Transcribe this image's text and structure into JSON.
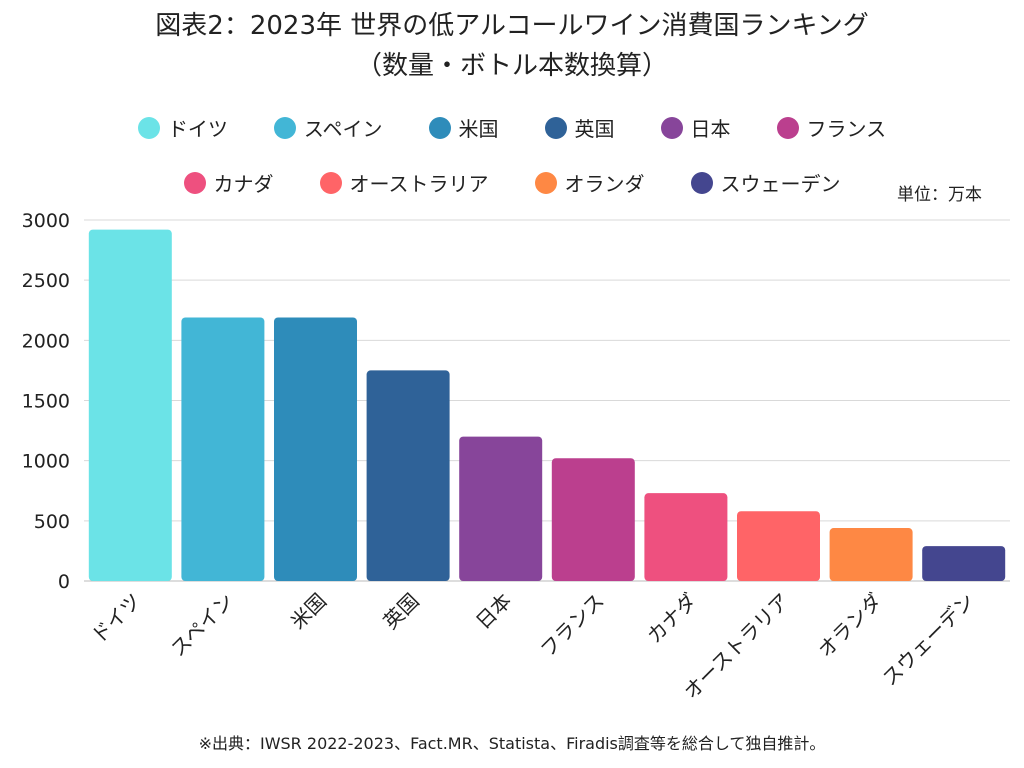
{
  "title": {
    "line1": "図表2：2023年 世界の低アルコールワイン消費国ランキング",
    "line2": "（数量・ボトル本数換算）"
  },
  "unit_label": "単位：万本",
  "source_note": "※出典：IWSR 2022-2023、Fact.MR、Statista、Firadis調査等を総合して独自推計。",
  "chart_data": {
    "type": "bar",
    "title": "図表2：2023年 世界の低アルコールワイン消費国ランキング（数量・ボトル本数換算）",
    "xlabel": "",
    "ylabel": "",
    "unit": "万本",
    "ylim": [
      0,
      3000
    ],
    "yticks": [
      0,
      500,
      1000,
      1500,
      2000,
      2500,
      3000
    ],
    "grid": true,
    "legend_position": "top",
    "categories": [
      "ドイツ",
      "スペイン",
      "米国",
      "英国",
      "日本",
      "フランス",
      "カナダ",
      "オーストラリア",
      "オランダ",
      "スウェーデン"
    ],
    "values": [
      2920,
      2190,
      2190,
      1750,
      1200,
      1020,
      730,
      580,
      440,
      290
    ],
    "colors": [
      "#6BE3E7",
      "#42B6D6",
      "#2E8CBA",
      "#2F6298",
      "#87459A",
      "#BB3F8E",
      "#EE507F",
      "#FF6467",
      "#FE8844",
      "#44468F"
    ],
    "legend_rows": [
      [
        0,
        1,
        2,
        3,
        4,
        5
      ],
      [
        6,
        7,
        8,
        9
      ]
    ]
  }
}
